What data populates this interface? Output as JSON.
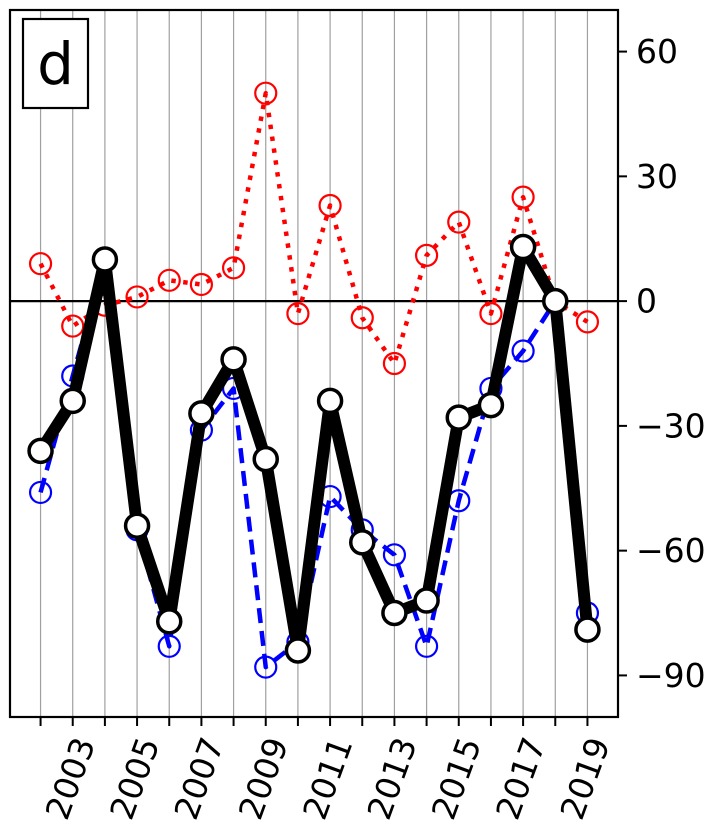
{
  "chart_data": {
    "type": "line",
    "panel_label": "d",
    "title": "",
    "xlabel": "",
    "ylabel": "",
    "x": [
      2002,
      2003,
      2004,
      2005,
      2006,
      2007,
      2008,
      2009,
      2010,
      2011,
      2012,
      2013,
      2014,
      2015,
      2016,
      2017,
      2018,
      2019
    ],
    "xlim": [
      2001.05,
      2019.95
    ],
    "ylim": [
      -100,
      70
    ],
    "y_axis_side": "right",
    "x_ticks": [
      2003,
      2005,
      2007,
      2009,
      2011,
      2013,
      2015,
      2017,
      2019
    ],
    "x_tick_labels": [
      "2003",
      "2005",
      "2007",
      "2009",
      "2011",
      "2013",
      "2015",
      "2017",
      "2019"
    ],
    "y_ticks": [
      60,
      30,
      0,
      -30,
      -60,
      -90
    ],
    "y_tick_labels": [
      "60",
      "30",
      "0",
      "−30",
      "−60",
      "−90"
    ],
    "vertical_grid": true,
    "zero_line": true,
    "series": [
      {
        "color": "#ff0000",
        "line_style": "dotted",
        "marker": "open-circle",
        "values": [
          9,
          -6,
          -1,
          1,
          5,
          4,
          8,
          50,
          -3,
          23,
          -4,
          -15,
          11,
          19,
          -3,
          25,
          0,
          -5
        ]
      },
      {
        "color": "#0000ff",
        "line_style": "dashed",
        "marker": "open-circle",
        "values": [
          -46,
          -18,
          10,
          -55,
          -83,
          -31,
          -21,
          -88,
          -82,
          -47,
          -55,
          -61,
          -83,
          -48,
          -21,
          -12,
          0,
          -75
        ]
      },
      {
        "color": "#000000",
        "line_style": "solid-thick",
        "marker": "open-circle",
        "values": [
          -36,
          -24,
          10,
          -54,
          -77,
          -27,
          -14,
          -38,
          -84,
          -24,
          -58,
          -75,
          -72,
          -28,
          -25,
          13,
          0,
          -79
        ]
      }
    ]
  }
}
